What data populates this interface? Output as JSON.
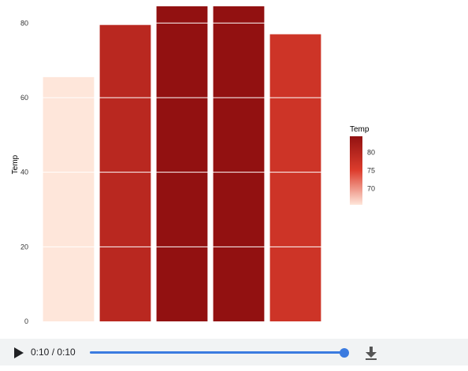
{
  "chart_data": {
    "type": "bar",
    "categories": [
      "",
      "",
      "",
      "",
      ""
    ],
    "values": [
      65.5,
      79.5,
      84.5,
      84.5,
      77
    ],
    "ylabel": "Temp",
    "xlabel": "",
    "ylim": [
      0,
      84.5
    ],
    "yticks": [
      0,
      20,
      40,
      60,
      80
    ],
    "grid": true,
    "legend": {
      "title": "Temp",
      "position": "right",
      "ticks": [
        70,
        75,
        80
      ],
      "range": [
        65.5,
        84.5
      ]
    },
    "colors": {
      "low": "#fee6da",
      "mid": "#dd3d2d",
      "high": "#921111",
      "grid": "#ffffff"
    }
  },
  "player": {
    "time_text": "0:10 / 0:10",
    "progress": 1.0,
    "play_icon": "play-icon",
    "download_icon": "download-icon",
    "accent": "#3b7be0"
  }
}
